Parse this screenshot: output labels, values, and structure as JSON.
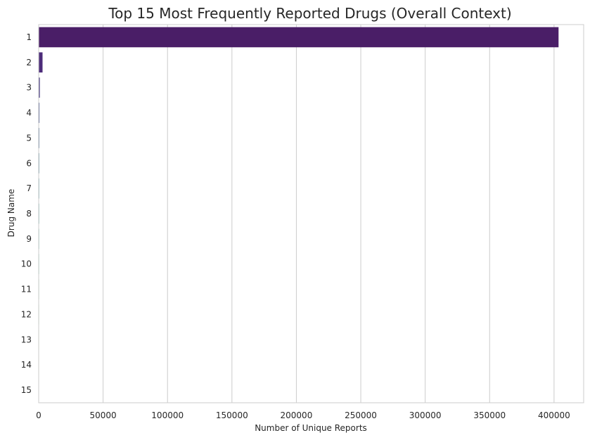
{
  "chart_data": {
    "type": "bar",
    "orientation": "horizontal",
    "title": "Top 15 Most Frequently Reported Drugs (Overall Context)",
    "xlabel": "Number of Unique Reports",
    "ylabel": "Drug Name",
    "categories": [
      "1",
      "2",
      "3",
      "4",
      "5",
      "6",
      "7",
      "8",
      "9",
      "10",
      "11",
      "12",
      "13",
      "14",
      "15"
    ],
    "values": [
      403500,
      3000,
      900,
      600,
      500,
      450,
      400,
      380,
      350,
      330,
      310,
      300,
      290,
      280,
      270
    ],
    "xlim": [
      0,
      423000
    ],
    "xticks": [
      0,
      50000,
      100000,
      150000,
      200000,
      250000,
      300000,
      350000,
      400000
    ],
    "grid": "vertical",
    "bar_colors": [
      "#4a1e67",
      "#4d2c7a",
      "#4a3e84",
      "#43508a",
      "#3c628c",
      "#35728c",
      "#2e838d",
      "#28928b",
      "#25a285",
      "#2fb07b",
      "#4bbd6c",
      "#6dca5a",
      "#92d441",
      "#bcdc2b",
      "#e4e21b"
    ]
  }
}
